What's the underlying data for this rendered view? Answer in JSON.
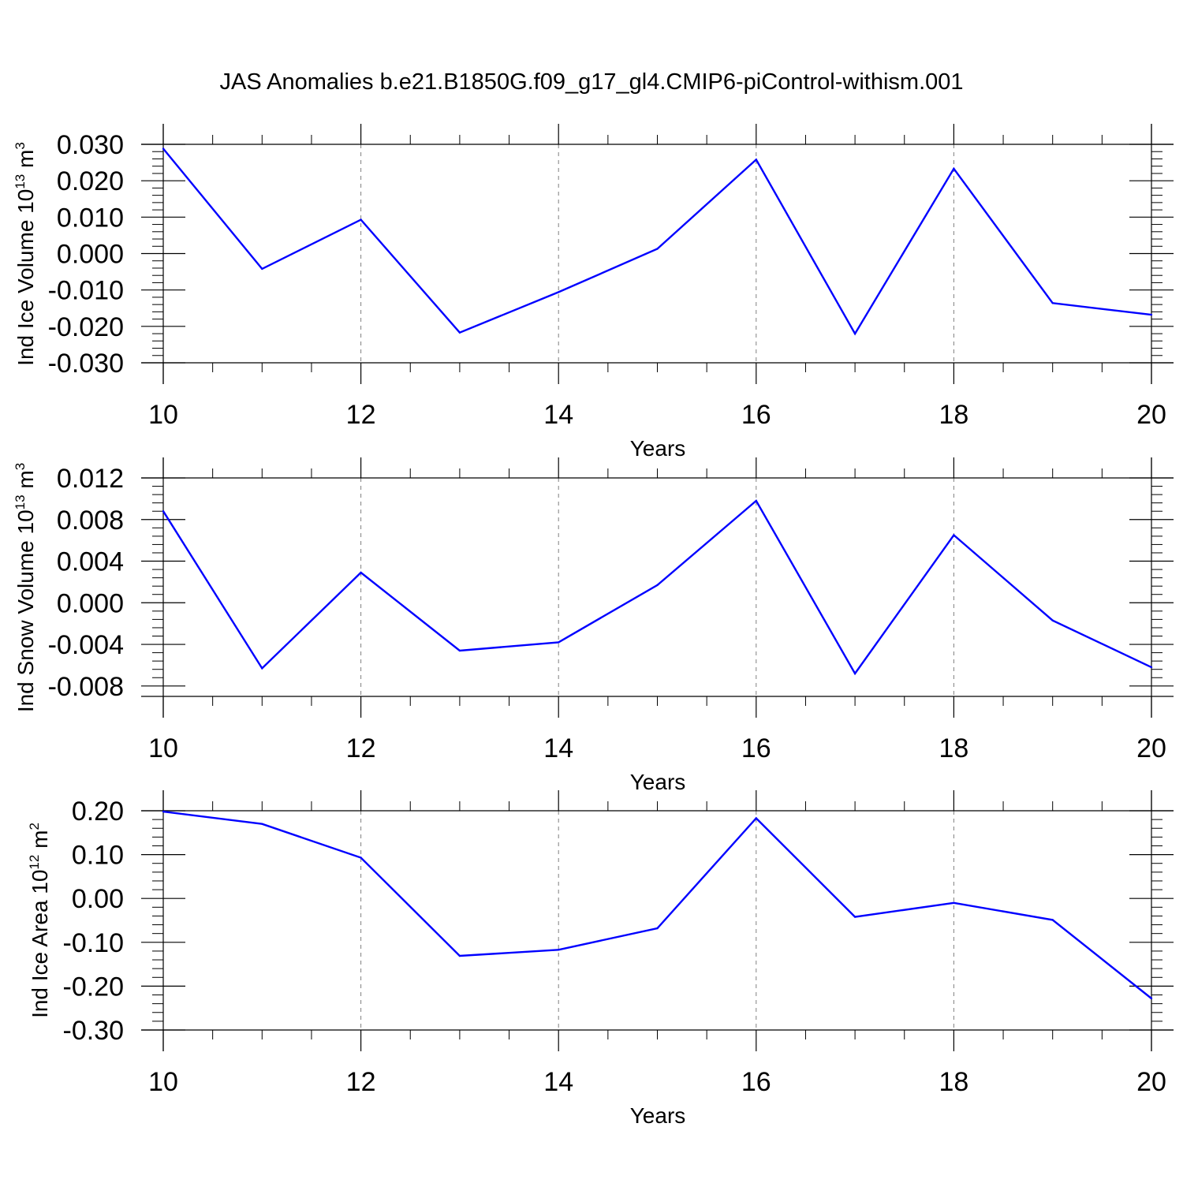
{
  "title": "JAS Anomalies b.e21.B1850G.f09_g17_gl4.CMIP6-piControl-withism.001",
  "colors": {
    "line": "#0000ff",
    "axis": "#000000",
    "grid": "#808080"
  },
  "chart_data": [
    {
      "type": "line",
      "name": "ice-volume",
      "ylabel": {
        "main": "Ind Ice Volume 10",
        "exp": "13",
        "unit": " m",
        "unit_exp": "3"
      },
      "xlabel": "Years",
      "xlim": [
        10,
        20
      ],
      "ylim": [
        -0.03,
        0.03
      ],
      "x_ticks": [
        "10",
        "12",
        "14",
        "16",
        "18",
        "20"
      ],
      "y_ticks": [
        "0.030",
        "0.020",
        "0.010",
        "0.000",
        "-0.010",
        "-0.020",
        "-0.030"
      ],
      "y_tick_values": [
        0.03,
        0.02,
        0.01,
        0.0,
        -0.01,
        -0.02,
        -0.03
      ],
      "x": [
        10,
        11,
        12,
        13,
        14,
        15,
        16,
        17,
        18,
        19,
        20
      ],
      "values": [
        0.0288,
        -0.0042,
        0.0093,
        -0.0217,
        -0.0106,
        0.0013,
        0.0258,
        -0.022,
        0.0233,
        -0.0136,
        -0.0168
      ]
    },
    {
      "type": "line",
      "name": "snow-volume",
      "ylabel": {
        "main": "Ind Snow Volume 10",
        "exp": "13",
        "unit": " m",
        "unit_exp": "3"
      },
      "xlabel": "Years",
      "xlim": [
        10,
        20
      ],
      "ylim": [
        -0.009,
        0.012
      ],
      "x_ticks": [
        "10",
        "12",
        "14",
        "16",
        "18",
        "20"
      ],
      "y_ticks": [
        "0.012",
        "0.008",
        "0.004",
        "0.000",
        "-0.004",
        "-0.008"
      ],
      "y_tick_values": [
        0.012,
        0.008,
        0.004,
        0.0,
        -0.004,
        -0.008
      ],
      "x": [
        10,
        11,
        12,
        13,
        14,
        15,
        16,
        17,
        18,
        19,
        20
      ],
      "values": [
        0.0088,
        -0.0063,
        0.0029,
        -0.0046,
        -0.0038,
        0.0017,
        0.0098,
        -0.0068,
        0.0065,
        -0.0017,
        -0.0062
      ]
    },
    {
      "type": "line",
      "name": "ice-area",
      "ylabel": {
        "main": "Ind Ice Area 10",
        "exp": "12",
        "unit": " m",
        "unit_exp": "2"
      },
      "xlabel": "Years",
      "xlim": [
        10,
        20
      ],
      "ylim": [
        -0.3,
        0.2
      ],
      "x_ticks": [
        "10",
        "12",
        "14",
        "16",
        "18",
        "20"
      ],
      "y_ticks": [
        "0.20",
        "0.10",
        "0.00",
        "-0.10",
        "-0.20",
        "-0.30"
      ],
      "y_tick_values": [
        0.2,
        0.1,
        0.0,
        -0.1,
        -0.2,
        -0.3
      ],
      "x": [
        10,
        11,
        12,
        13,
        14,
        15,
        16,
        17,
        18,
        19,
        20
      ],
      "values": [
        0.198,
        0.17,
        0.093,
        -0.131,
        -0.117,
        -0.068,
        0.183,
        -0.042,
        -0.01,
        -0.049,
        -0.228
      ]
    }
  ]
}
